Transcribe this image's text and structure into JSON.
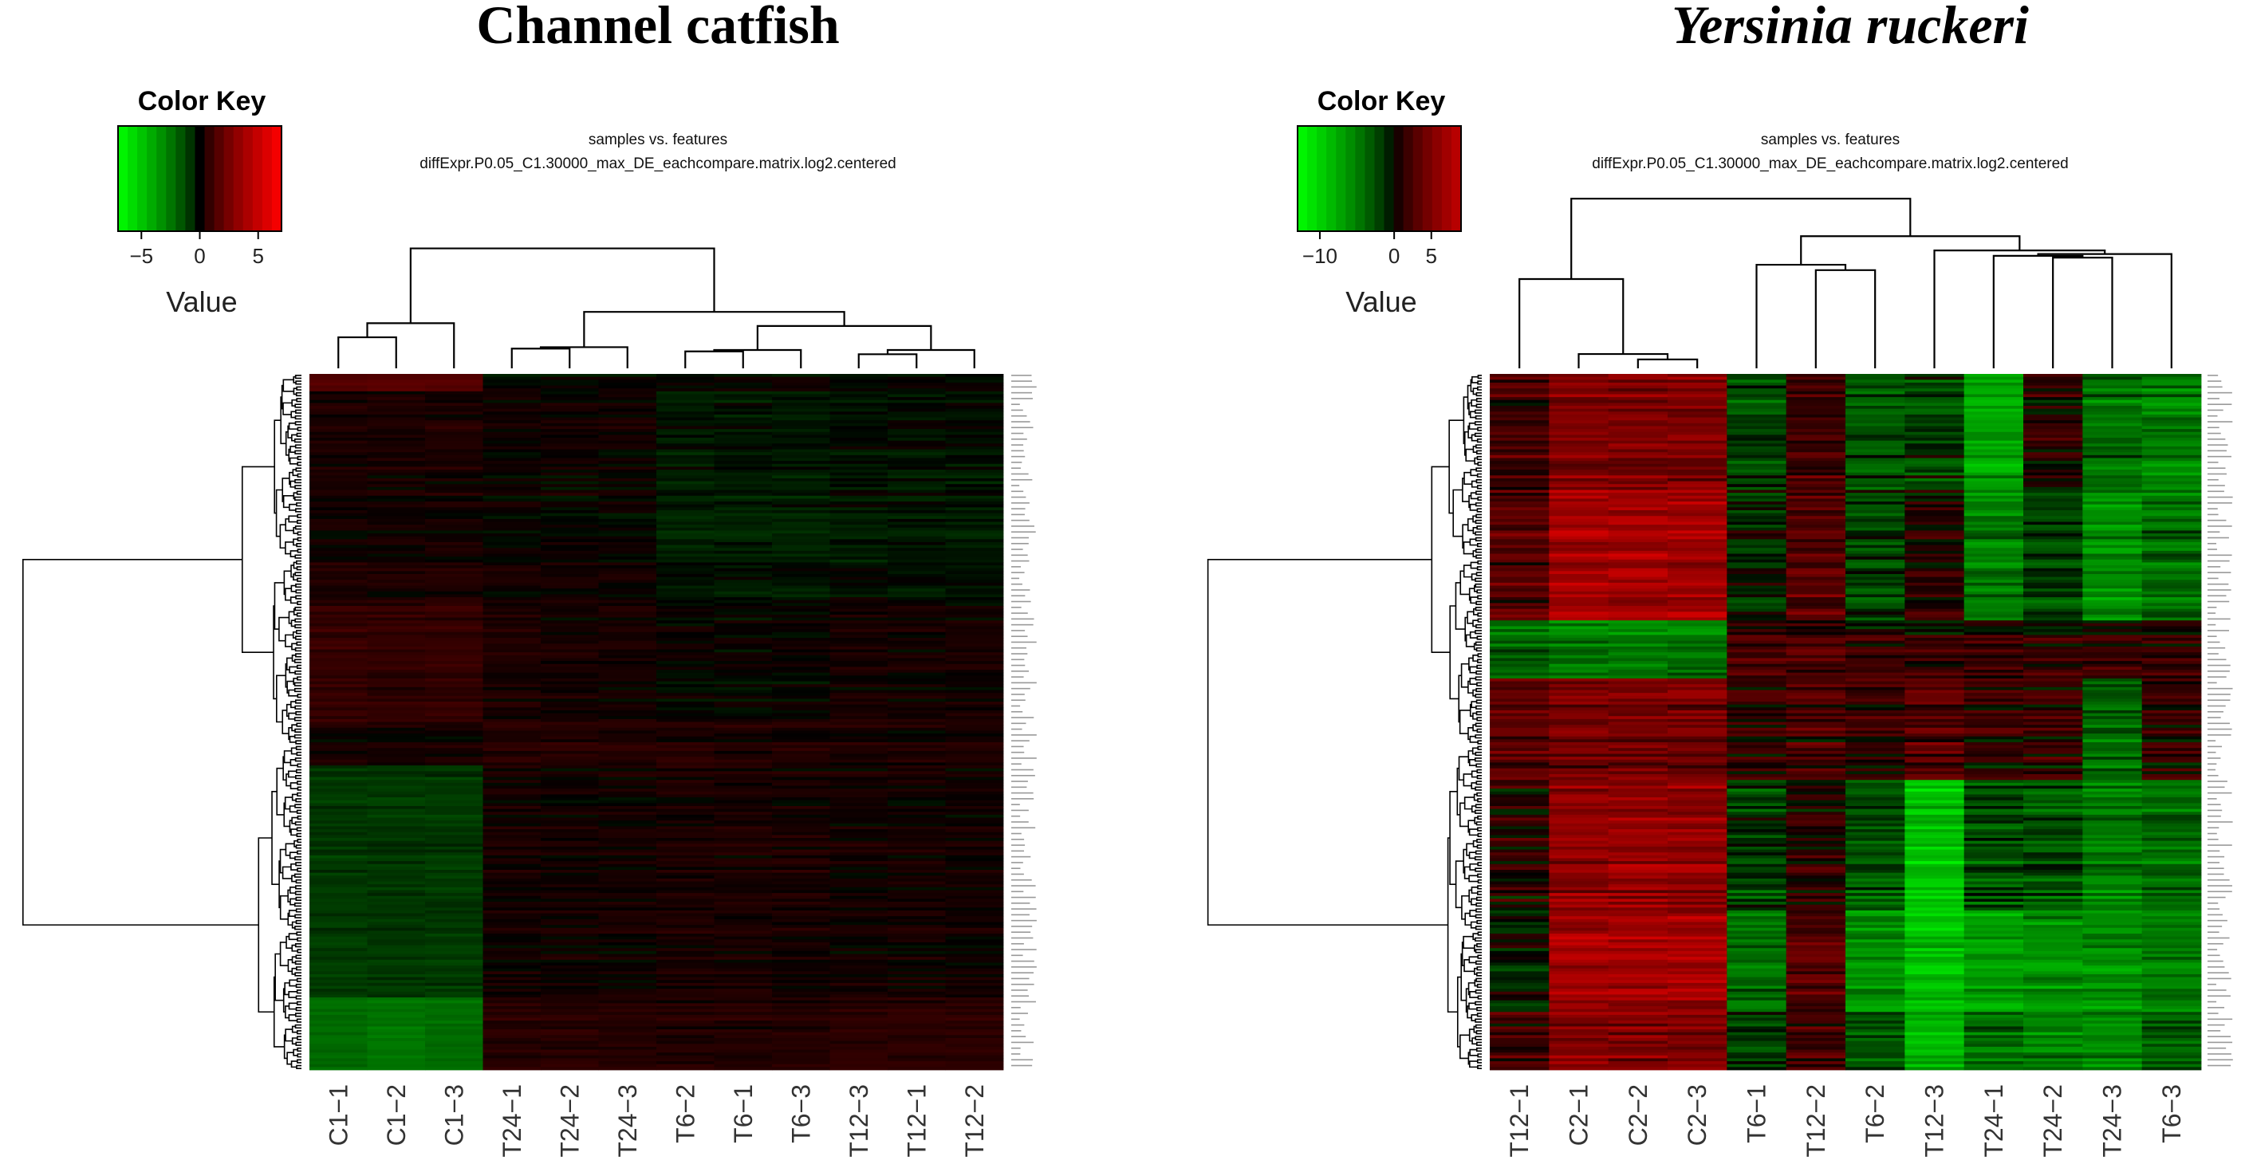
{
  "chart_data": [
    {
      "type": "heatmap",
      "title": "Channel catfish",
      "title_style": "bold",
      "subtitle_line1": "samples vs. features",
      "subtitle_line2": "diffExpr.P0.05_C1.30000_max_DE_eachcompare.matrix.log2.centered",
      "color_key": {
        "label": "Color Key",
        "axis_label": "Value",
        "min": -7,
        "max": 7,
        "ticks": [
          -5,
          0,
          5
        ],
        "tick_labels": [
          "−5",
          "0",
          "5"
        ],
        "low_color": "#00ff00",
        "mid_color": "#000000",
        "high_color": "#ff0000"
      },
      "columns": [
        "C1−1",
        "C1−2",
        "C1−3",
        "T24−1",
        "T24−2",
        "T24−3",
        "T6−2",
        "T6−1",
        "T6−3",
        "T12−3",
        "T12−1",
        "T12−2"
      ],
      "column_dendrogram": [
        [
          0,
          1,
          0.22
        ],
        [
          2,
          12,
          0.32
        ],
        [
          3,
          4,
          0.14
        ],
        [
          5,
          14,
          0.15
        ],
        [
          6,
          7,
          0.12
        ],
        [
          8,
          16,
          0.13
        ],
        [
          9,
          10,
          0.1
        ],
        [
          11,
          18,
          0.13
        ],
        [
          17,
          19,
          0.3
        ],
        [
          15,
          20,
          0.4
        ],
        [
          13,
          21,
          0.85
        ]
      ],
      "row_count": 240,
      "row_clusters": [
        {
          "rows": [
            0,
            6
          ],
          "values": [
            1.5,
            1.5,
            1.5,
            0,
            0,
            0,
            0,
            0,
            0,
            0,
            0,
            0
          ]
        },
        {
          "rows": [
            6,
            80
          ],
          "values": [
            0.3,
            0.3,
            0.3,
            0.1,
            0.1,
            0.1,
            -0.3,
            -0.3,
            -0.3,
            -0.2,
            -0.2,
            -0.2
          ]
        },
        {
          "rows": [
            80,
            120
          ],
          "values": [
            0.8,
            0.7,
            0.8,
            0.3,
            0.2,
            0.2,
            0,
            0,
            0,
            0.2,
            0.2,
            0.2
          ]
        },
        {
          "rows": [
            120,
            135
          ],
          "values": [
            0.2,
            0.2,
            0.2,
            0.5,
            0.5,
            0.4,
            0.4,
            0.4,
            0.4,
            0.3,
            0.3,
            0.3
          ]
        },
        {
          "rows": [
            135,
            215
          ],
          "values": [
            -0.9,
            -0.9,
            -0.9,
            0.2,
            0.2,
            0.2,
            0.3,
            0.3,
            0.3,
            0.2,
            0.2,
            0.2
          ]
        },
        {
          "rows": [
            215,
            240
          ],
          "values": [
            -2.2,
            -2.5,
            -2.3,
            0.5,
            0.5,
            0.5,
            0.4,
            0.4,
            0.4,
            0.6,
            0.6,
            0.6
          ]
        }
      ]
    },
    {
      "type": "heatmap",
      "title": "Yersinia ruckeri",
      "title_style": "bold-italic",
      "subtitle_line1": "samples vs. features",
      "subtitle_line2": "diffExpr.P0.05_C1.30000_max_DE_eachcompare.matrix.log2.centered",
      "color_key": {
        "label": "Color Key",
        "axis_label": "Value",
        "min": -13,
        "max": 9,
        "ticks": [
          -10,
          0,
          5
        ],
        "tick_labels": [
          "−10",
          "0",
          "5"
        ],
        "low_color": "#00ff00",
        "mid_color": "#000000",
        "high_color": "#ff0000"
      },
      "columns": [
        "T12−1",
        "C2−1",
        "C2−2",
        "C2−3",
        "T6−1",
        "T12−2",
        "T6−2",
        "T12−3",
        "T24−1",
        "T24−2",
        "T24−3",
        "T6−3"
      ],
      "column_dendrogram": [
        [
          2,
          3,
          0.05
        ],
        [
          1,
          12,
          0.08
        ],
        [
          0,
          13,
          0.5
        ],
        [
          5,
          6,
          0.55
        ],
        [
          4,
          15,
          0.58
        ],
        [
          9,
          10,
          0.62
        ],
        [
          8,
          17,
          0.63
        ],
        [
          11,
          18,
          0.64
        ],
        [
          7,
          19,
          0.66
        ],
        [
          16,
          20,
          0.74
        ],
        [
          14,
          21,
          0.95
        ]
      ],
      "row_count": 240,
      "row_clusters": [
        {
          "rows": [
            0,
            40
          ],
          "values": [
            2,
            5,
            5,
            5,
            -2,
            2,
            -3,
            -2,
            -7,
            1,
            -4,
            -5
          ]
        },
        {
          "rows": [
            40,
            85
          ],
          "values": [
            3,
            7,
            7,
            7,
            -1,
            3,
            -2,
            1,
            -5,
            -2,
            -6,
            -4
          ]
        },
        {
          "rows": [
            85,
            105
          ],
          "values": [
            -4,
            -5,
            -5,
            -5,
            2,
            2,
            1,
            1,
            1,
            1,
            1,
            1
          ]
        },
        {
          "rows": [
            105,
            140
          ],
          "values": [
            3,
            4,
            4,
            4,
            1,
            2,
            1,
            3,
            1,
            1,
            -4,
            1
          ]
        },
        {
          "rows": [
            140,
            185
          ],
          "values": [
            1,
            6,
            6,
            6,
            -2,
            1,
            -3,
            -9,
            -3,
            -3,
            -5,
            -4
          ]
        },
        {
          "rows": [
            185,
            220
          ],
          "values": [
            -1,
            7,
            7,
            7,
            -4,
            3,
            -6,
            -9,
            -7,
            -6,
            -6,
            -5
          ]
        },
        {
          "rows": [
            220,
            240
          ],
          "values": [
            2,
            5,
            5,
            5,
            -2,
            2,
            -3,
            -8,
            -4,
            -5,
            -6,
            -3
          ]
        }
      ]
    }
  ]
}
